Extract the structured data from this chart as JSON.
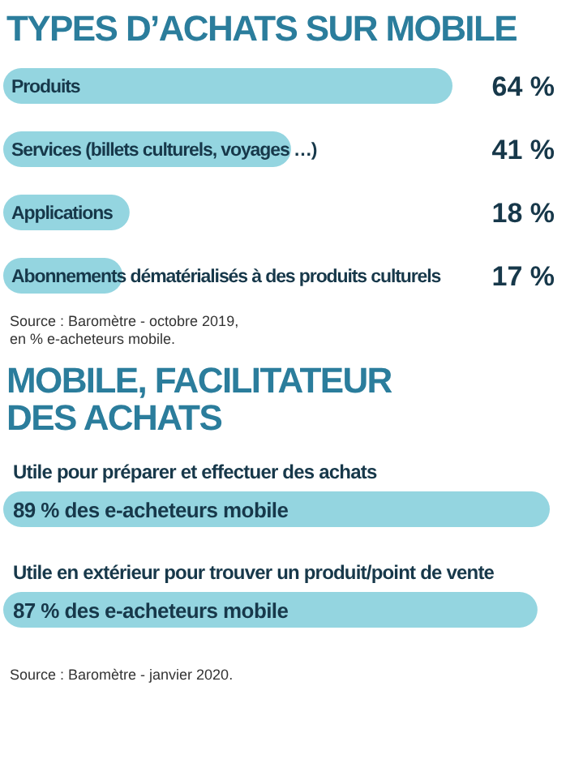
{
  "chart_data": [
    {
      "type": "bar",
      "orientation": "horizontal",
      "title": "TYPES D’ACHATS SUR MOBILE",
      "categories": [
        "Produits",
        "Services (billets culturels, voyages …)",
        "Applications",
        "Abonnements dématérialisés à des produits culturels"
      ],
      "values": [
        64,
        41,
        18,
        17
      ],
      "value_labels": [
        "64 %",
        "41 %",
        "18 %",
        "17 %"
      ],
      "color": "#94d5e0",
      "annotations": [
        "Source : Baromètre - octobre 2019,\nen % e-acheteurs mobile."
      ]
    },
    {
      "type": "bar",
      "orientation": "horizontal",
      "title": "MOBILE, FACILITATEUR\nDES ACHATS",
      "categories": [
        "Utile pour préparer et effectuer des achats",
        "Utile en extérieur pour trouver un produit/point de vente"
      ],
      "values": [
        89,
        87
      ],
      "value_labels": [
        "89 % des e-acheteurs mobile",
        "87 % des e-acheteurs mobile"
      ],
      "color": "#94d5e0",
      "annotations": [
        "Source : Baromètre - janvier 2020."
      ]
    }
  ]
}
